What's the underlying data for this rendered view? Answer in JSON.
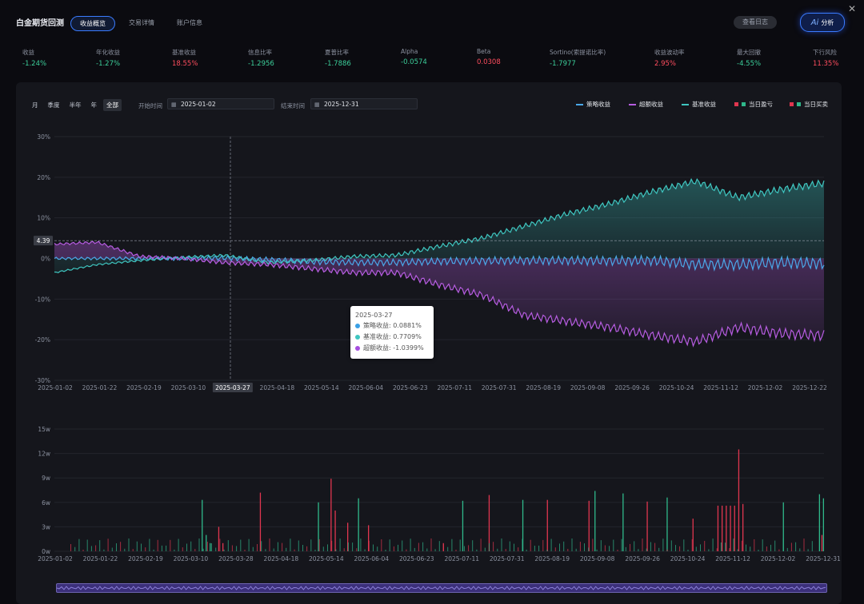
{
  "app": {
    "title": "白金期货回测",
    "log_button": "查看日志",
    "ai_button": "分析",
    "ai_glyph": "Ai",
    "close": "✕"
  },
  "tabs": [
    {
      "label": "收益概览",
      "active": true
    },
    {
      "label": "交易详情",
      "active": false
    },
    {
      "label": "账户信息",
      "active": false
    }
  ],
  "metrics": [
    {
      "label": "收益",
      "value": "-1.24%",
      "tone": "green"
    },
    {
      "label": "年化收益",
      "value": "-1.27%",
      "tone": "green"
    },
    {
      "label": "基准收益",
      "value": "18.55%",
      "tone": "red"
    },
    {
      "label": "信息比率",
      "value": "-1.2956",
      "tone": "green"
    },
    {
      "label": "夏普比率",
      "value": "-1.7886",
      "tone": "green"
    },
    {
      "label": "Alpha",
      "value": "-0.0574",
      "tone": "green"
    },
    {
      "label": "Beta",
      "value": "0.0308",
      "tone": "red"
    },
    {
      "label": "Sortino(索提诺比率)",
      "value": "-1.7977",
      "tone": "green"
    },
    {
      "label": "收益波动率",
      "value": "2.95%",
      "tone": "red"
    },
    {
      "label": "最大回撤",
      "value": "-4.55%",
      "tone": "green"
    },
    {
      "label": "下行风险",
      "value": "11.35%",
      "tone": "red"
    }
  ],
  "controls": {
    "periods": [
      {
        "label": "月",
        "active": false
      },
      {
        "label": "季度",
        "active": false
      },
      {
        "label": "半年",
        "active": false
      },
      {
        "label": "年",
        "active": false
      },
      {
        "label": "全部",
        "active": true
      }
    ],
    "start_label": "开始时间",
    "start_value": "2025-01-02",
    "end_label": "结束时间",
    "end_value": "2025-12-31",
    "calendar_icon": "▦"
  },
  "legend": [
    {
      "label": "策略收益",
      "color": "#4aa8e8",
      "shape": "line"
    },
    {
      "label": "超额收益",
      "color": "#b65ce0",
      "shape": "line"
    },
    {
      "label": "基准收益",
      "color": "#3fc6c0",
      "shape": "line"
    },
    {
      "label": "当日盈亏",
      "colors": [
        "#e0364f",
        "#2fb88a"
      ],
      "shape": "squares"
    },
    {
      "label": "当日买卖",
      "colors": [
        "#e0364f",
        "#2fb88a"
      ],
      "shape": "squares"
    }
  ],
  "colors": {
    "strategy": "#4aa8e8",
    "excess": "#b65ce0",
    "benchmark": "#3fc6c0",
    "buy_sell_red": "#e0364f",
    "buy_sell_green": "#2fb88a"
  },
  "crosshair": {
    "date": "2025-03-27",
    "y_value_label": "4.39"
  },
  "tooltip": {
    "date": "2025-03-27",
    "rows": [
      {
        "label": "策略收益: 0.0881%",
        "color": "#3aa0e6"
      },
      {
        "label": "基准收益: 0.7709%",
        "color": "#3fc6c0"
      },
      {
        "label": "超额收益: -1.0399%",
        "color": "#a64ee0"
      }
    ]
  },
  "chart_data": [
    {
      "type": "line",
      "title": "",
      "xlabel": "",
      "ylabel": "",
      "ylim": [
        -30,
        30
      ],
      "y_ticks": [
        "30%",
        "20%",
        "10%",
        "0%",
        "-10%",
        "-20%",
        "-30%"
      ],
      "x_ticks": [
        "2025-01-02",
        "2025-01-22",
        "2025-02-19",
        "2025-03-10",
        "2025-03-27",
        "2025-04-18",
        "2025-05-14",
        "2025-06-04",
        "2025-06-23",
        "2025-07-11",
        "2025-07-31",
        "2025-08-19",
        "2025-09-08",
        "2025-09-26",
        "2025-10-24",
        "2025-11-12",
        "2025-12-02",
        "2025-12-22"
      ],
      "x": [
        "2025-01-02",
        "2025-01-22",
        "2025-02-19",
        "2025-03-10",
        "2025-03-27",
        "2025-04-18",
        "2025-05-14",
        "2025-06-04",
        "2025-06-23",
        "2025-07-11",
        "2025-07-31",
        "2025-08-19",
        "2025-09-08",
        "2025-09-26",
        "2025-10-24",
        "2025-11-12",
        "2025-12-02",
        "2025-12-22",
        "2025-12-31"
      ],
      "series": [
        {
          "name": "策略收益",
          "values": [
            0.0,
            0.0,
            0.0,
            0.0,
            0.09,
            -0.3,
            -0.8,
            -1.0,
            -1.0,
            -0.7,
            -0.6,
            -0.5,
            -0.5,
            -0.6,
            -0.5,
            -1.5,
            -1.5,
            -1.0,
            -1.24
          ]
        },
        {
          "name": "基准收益",
          "values": [
            -3.5,
            -1.5,
            -0.5,
            0.3,
            0.77,
            -1.0,
            -0.5,
            0.5,
            0.8,
            3.0,
            5.0,
            8.0,
            11.0,
            13.5,
            16.5,
            19.0,
            15.0,
            17.0,
            18.55
          ]
        },
        {
          "name": "超额收益",
          "values": [
            3.5,
            4.0,
            0.5,
            0.0,
            -1.04,
            -1.5,
            -2.5,
            -3.5,
            -3.5,
            -6.5,
            -9.0,
            -14.0,
            -15.5,
            -17.0,
            -19.0,
            -20.5,
            -17.0,
            -18.5,
            -19.0
          ]
        }
      ]
    },
    {
      "type": "bar",
      "title": "",
      "xlabel": "",
      "ylabel": "",
      "ylim": [
        0,
        15
      ],
      "y_ticks": [
        "15w",
        "12w",
        "9w",
        "6w",
        "3w",
        "0w"
      ],
      "x_ticks": [
        "2025-01-02",
        "2025-01-22",
        "2025-02-19",
        "2025-03-10",
        "2025-03-28",
        "2025-04-18",
        "2025-05-14",
        "2025-06-04",
        "2025-06-23",
        "2025-07-11",
        "2025-07-31",
        "2025-08-19",
        "2025-09-08",
        "2025-09-26",
        "2025-10-24",
        "2025-11-12",
        "2025-12-02",
        "2025-12-31"
      ],
      "series": [
        {
          "name": "红",
          "color": "#e0364f",
          "values": [
            0,
            0,
            0,
            0,
            0,
            0,
            0,
            0,
            0,
            0,
            0,
            0,
            0,
            0,
            0,
            0,
            0,
            0,
            0,
            0,
            0,
            0,
            0,
            0,
            0,
            0,
            0,
            0,
            0,
            0,
            0,
            0,
            0,
            0,
            0,
            0,
            0,
            0,
            0,
            3.0,
            1.0,
            0,
            0,
            0,
            0,
            0,
            0,
            0,
            0,
            7.2,
            0,
            0,
            0,
            0,
            0,
            0,
            0,
            0,
            0,
            0,
            0,
            0,
            0,
            0,
            0,
            0,
            8.9,
            5.0,
            0,
            0,
            3.5,
            0,
            0,
            0,
            0,
            3.2,
            0,
            0,
            0,
            0,
            0,
            0,
            0,
            0,
            0,
            0,
            0,
            0,
            0,
            0,
            0,
            0,
            0,
            1.0,
            0,
            0,
            0,
            0,
            0,
            0,
            0,
            0,
            0,
            0,
            6.9,
            0,
            0,
            0,
            0,
            0,
            0,
            0,
            0,
            0,
            0,
            0,
            0,
            0,
            6.3,
            0,
            0,
            0,
            0,
            0,
            0,
            0,
            0,
            0,
            6.2,
            0,
            0,
            0,
            0,
            0,
            0,
            0,
            0,
            0,
            0,
            0,
            0,
            0,
            6.1,
            0,
            0,
            0,
            0,
            0,
            0,
            0,
            0,
            0,
            0,
            4.0,
            0,
            0,
            0,
            0,
            0,
            5.6,
            5.6,
            5.6,
            5.6,
            5.6,
            12.5,
            5.8,
            0,
            0,
            0,
            0,
            0,
            0,
            0,
            0,
            0,
            0,
            0,
            0,
            0,
            0,
            0,
            0,
            0,
            0,
            2.0
          ]
        },
        {
          "name": "绿",
          "color": "#2fb88a",
          "values": [
            0,
            0,
            0,
            0,
            0,
            0,
            0,
            0,
            0,
            0,
            0,
            0,
            0,
            0,
            0,
            0,
            0,
            0,
            0,
            0,
            0,
            0,
            0,
            0,
            0,
            0,
            0,
            0,
            0,
            0,
            0,
            0,
            0,
            0,
            0,
            0,
            6.3,
            2.0,
            1.0,
            0,
            0,
            0,
            0,
            0,
            0,
            0,
            0,
            0,
            0,
            0,
            0,
            0,
            0,
            0,
            0,
            0,
            0,
            0,
            0,
            0,
            0,
            0,
            0,
            0,
            0,
            6.0,
            0,
            0,
            0,
            0,
            0,
            0,
            0,
            0,
            0,
            6.5,
            0,
            0,
            0,
            0,
            0,
            0,
            0,
            0,
            0,
            0,
            0,
            0,
            0,
            0,
            0,
            0,
            0,
            0,
            0,
            0,
            0,
            0,
            0,
            0,
            0,
            6.2,
            0,
            0,
            0,
            0,
            0,
            0,
            0,
            0,
            0,
            0,
            0,
            0,
            0,
            0,
            6.3,
            0,
            0,
            0,
            0,
            0,
            0,
            0,
            0,
            0,
            0,
            0,
            0,
            0,
            0,
            0,
            0,
            0,
            7.4,
            0,
            0,
            0,
            0,
            0,
            0,
            7.1,
            0,
            0,
            0,
            0,
            0,
            0,
            0,
            0,
            0,
            0,
            6.6,
            0,
            0,
            0,
            0,
            0,
            0,
            0,
            0,
            0,
            0,
            0,
            0,
            0,
            0,
            0,
            0,
            0,
            0,
            0,
            0,
            0,
            0,
            0,
            0,
            0,
            0,
            0,
            0,
            6.0,
            0,
            0,
            0,
            0,
            0,
            0,
            0,
            0,
            7.0,
            6.5
          ]
        }
      ]
    }
  ]
}
